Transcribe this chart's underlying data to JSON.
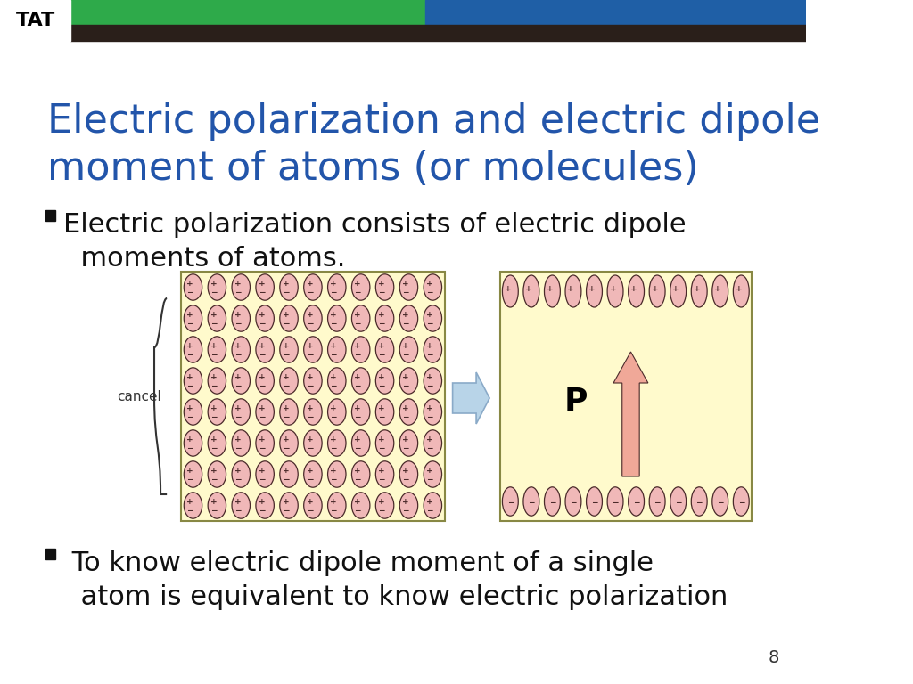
{
  "title": "Electric polarization and electric dipole\nmoment of atoms (or molecules)",
  "title_color": "#2255AA",
  "title_fontsize": 32,
  "bullet1": "Electric polarization consists of electric dipole\n  moments of atoms.",
  "bullet2": " To know electric dipole moment of a single\n  atom is equivalent to know electric polarization",
  "bullet_fontsize": 22,
  "bullet_color": "#111111",
  "bg_color": "#FFFFFF",
  "header_green": "#2EAA4A",
  "header_blue": "#1F5FA6",
  "header_dark": "#2A1F1A",
  "page_number": "8",
  "left_box_bg": "#FFFACC",
  "left_box_border": "#888844",
  "right_box_bg": "#FFFACC",
  "right_box_border": "#888844",
  "atom_fill": "#F0B8B8",
  "atom_edge": "#4A2A2A",
  "arrow_fill": "#F0A898",
  "arrow_edge": "#4A2A2A"
}
